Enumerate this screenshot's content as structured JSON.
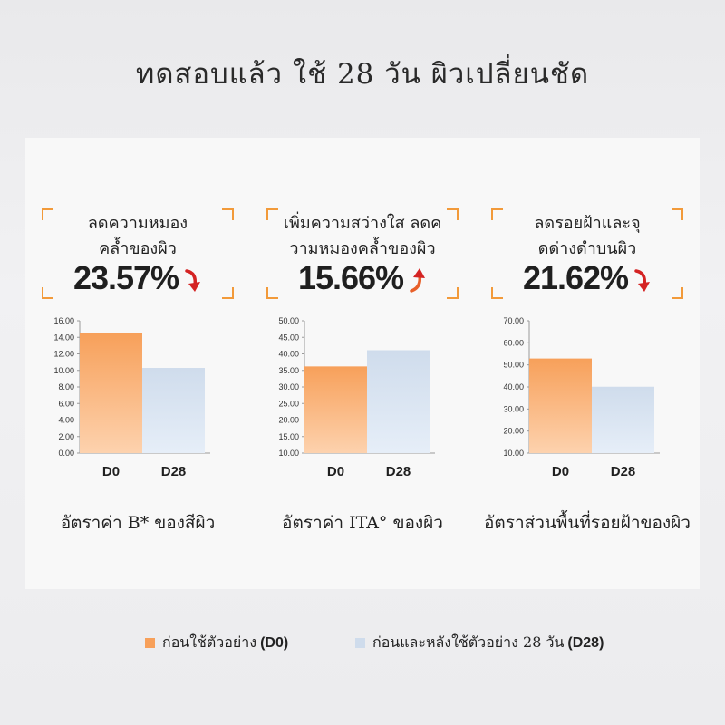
{
  "title": "ทดสอบแล้ว ใช้ 28 วัน ผิวเปลี่ยนชัด",
  "colors": {
    "d0": "#f7a05a",
    "d28": "#cfdcec",
    "accent": "#f29a3a",
    "arrow": "#d42323",
    "arrow_up": "#e8602a"
  },
  "highlights": [
    {
      "text1": "ลดความหมอง",
      "text2": "คล้ำของผิว",
      "value": "23.57%",
      "direction": "down"
    },
    {
      "text1": "เพิ่มความสว่างใส ลดค",
      "text2": "วามหมองคล้ำของผิว",
      "value": "15.66%",
      "direction": "up"
    },
    {
      "text1": "ลดรอยฝ้าและจุ",
      "text2": "ดด่างดำบนผิว",
      "value": "21.62%",
      "direction": "down"
    }
  ],
  "captions": [
    "อัตราค่า B* ของสีผิว",
    "อัตราค่า ITA° ของผิว",
    "อัตราส่วนพื้นที่รอยฝ้าของผิว"
  ],
  "legend": {
    "d0_text": "ก่อนใช้ตัวอย่าง",
    "d0_code": "(D0)",
    "d28_text": "ก่อนและหลังใช้ตัวอย่าง 28 วัน",
    "d28_code": "(D28)"
  },
  "chart_data": [
    {
      "type": "bar",
      "categories": [
        "D0",
        "D28"
      ],
      "values": [
        14.5,
        10.3
      ],
      "ylim": [
        0,
        16
      ],
      "yticks": [
        "0.00",
        "2.00",
        "4.00",
        "6.00",
        "8.00",
        "10.00",
        "12.00",
        "14.00",
        "16.00"
      ],
      "title": "",
      "xlabel": "",
      "ylabel": ""
    },
    {
      "type": "bar",
      "categories": [
        "D0",
        "D28"
      ],
      "values": [
        36.2,
        41.1
      ],
      "ylim": [
        10,
        50
      ],
      "yticks": [
        "10.00",
        "15.00",
        "20.00",
        "25.00",
        "30.00",
        "35.00",
        "40.00",
        "45.00",
        "50.00"
      ],
      "title": "",
      "xlabel": "",
      "ylabel": ""
    },
    {
      "type": "bar",
      "categories": [
        "D0",
        "D28"
      ],
      "values": [
        52.9,
        40.1
      ],
      "ylim": [
        10,
        70
      ],
      "yticks": [
        "10.00",
        "20.00",
        "30.00",
        "40.00",
        "50.00",
        "60.00",
        "70.00"
      ],
      "title": "",
      "xlabel": "",
      "ylabel": ""
    }
  ]
}
